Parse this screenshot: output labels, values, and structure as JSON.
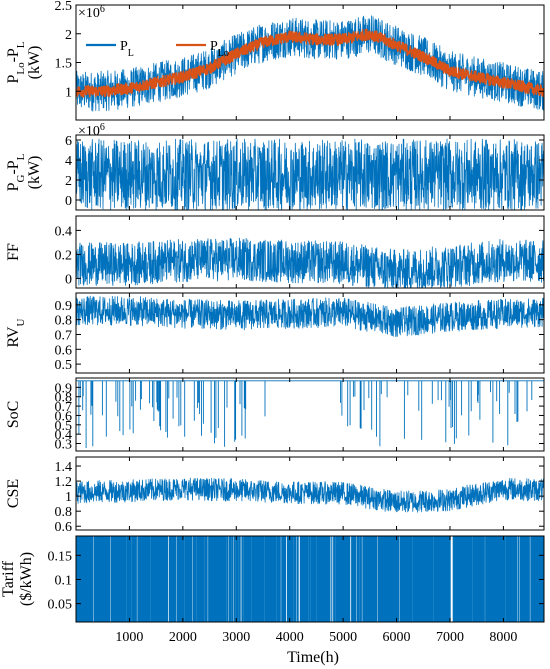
{
  "figure": {
    "xlabel": "Time(h)",
    "x_ticks": [
      1000,
      2000,
      3000,
      4000,
      5000,
      6000,
      7000,
      8000
    ],
    "x_range": [
      0,
      8760
    ],
    "colors": {
      "primary": "#0072BD",
      "secondary": "#D95319",
      "axis": "#000000"
    }
  },
  "chart_data": [
    {
      "type": "line",
      "ylabel_parts": [
        "P",
        "Lo",
        "-P",
        "L",
        " (kW)"
      ],
      "exponent": "×10^6",
      "ylim": [
        500000.0,
        2500000.0
      ],
      "y_ticks": [
        1000000.0,
        1500000.0,
        2000000.0,
        2500000.0
      ],
      "y_tick_labels": [
        "1",
        "1.5",
        "2",
        "2.5"
      ],
      "legend": {
        "placement": "top-left",
        "entries": [
          {
            "name": "P",
            "sub": "L"
          },
          {
            "name": "P",
            "sub": "Lo"
          }
        ]
      },
      "series": [
        {
          "name": "P_L",
          "color": "#0072BD",
          "x": [
            0,
            500,
            1000,
            1500,
            2000,
            2500,
            3000,
            3500,
            4000,
            4500,
            5000,
            5500,
            6000,
            6500,
            7000,
            7500,
            8000,
            8500,
            8760
          ],
          "values": [
            1000000.0,
            1000000.0,
            1050000.0,
            1150000.0,
            1250000.0,
            1400000.0,
            1650000.0,
            1850000.0,
            1950000.0,
            1900000.0,
            1900000.0,
            2000000.0,
            1800000.0,
            1600000.0,
            1350000.0,
            1250000.0,
            1150000.0,
            1050000.0,
            1000000.0
          ],
          "spread": 350000.0
        },
        {
          "name": "P_Lo",
          "color": "#D95319",
          "x": [
            0,
            500,
            1000,
            1500,
            2000,
            2500,
            3000,
            3500,
            4000,
            4500,
            5000,
            5500,
            6000,
            6500,
            7000,
            7500,
            8000,
            8500,
            8760
          ],
          "values": [
            1000000.0,
            1000000.0,
            1050000.0,
            1150000.0,
            1250000.0,
            1400000.0,
            1650000.0,
            1850000.0,
            1950000.0,
            1900000.0,
            1900000.0,
            2000000.0,
            1800000.0,
            1600000.0,
            1350000.0,
            1250000.0,
            1150000.0,
            1050000.0,
            1000000.0
          ],
          "spread": 100000.0
        }
      ]
    },
    {
      "type": "line",
      "ylabel_parts": [
        "P",
        "G",
        "-P",
        "L",
        " (kW)"
      ],
      "exponent": "×10^6",
      "ylim": [
        -1000000.0,
        6500000.0
      ],
      "y_ticks": [
        0,
        2000000.0,
        4000000.0,
        6000000.0
      ],
      "y_tick_labels": [
        "0",
        "2",
        "4",
        "6"
      ],
      "series": [
        {
          "color": "#0072BD",
          "x": [
            0,
            8760
          ],
          "values": [
            2500000.0,
            2500000.0
          ],
          "spread": 3600000.0
        }
      ]
    },
    {
      "type": "line",
      "ylabel_parts": [
        "FF"
      ],
      "ylim": [
        -0.08,
        0.52
      ],
      "y_ticks": [
        0,
        0.2,
        0.4
      ],
      "y_tick_labels": [
        "0",
        "0.2",
        "0.4"
      ],
      "series": [
        {
          "color": "#0072BD",
          "x": [
            0,
            1000,
            2000,
            3000,
            4000,
            5000,
            6000,
            7000,
            8000,
            8760
          ],
          "values": [
            0.12,
            0.12,
            0.15,
            0.16,
            0.14,
            0.13,
            0.06,
            0.1,
            0.15,
            0.14
          ],
          "spread": 0.18
        }
      ]
    },
    {
      "type": "line",
      "ylabel_parts": [
        "RV",
        "U"
      ],
      "ylim": [
        0.44,
        0.98
      ],
      "y_ticks": [
        0.5,
        0.6,
        0.7,
        0.8,
        0.9
      ],
      "y_tick_labels": [
        "0.5",
        "0.6",
        "0.7",
        "0.8",
        "0.9"
      ],
      "series": [
        {
          "color": "#0072BD",
          "x": [
            0,
            1000,
            2000,
            3000,
            4000,
            5000,
            6000,
            7000,
            8000,
            8760
          ],
          "values": [
            0.86,
            0.86,
            0.84,
            0.83,
            0.84,
            0.85,
            0.78,
            0.82,
            0.84,
            0.85
          ],
          "spread": 0.1
        }
      ]
    },
    {
      "type": "line",
      "ylabel_parts": [
        "SoC"
      ],
      "ylim": [
        0.22,
        1.0
      ],
      "y_ticks": [
        0.3,
        0.4,
        0.5,
        0.6,
        0.7,
        0.8,
        0.9
      ],
      "y_tick_labels": [
        "0.3",
        "0.4",
        "0.5",
        "0.6",
        "0.7",
        "0.8",
        "0.9"
      ],
      "series": [
        {
          "color": "#0072BD",
          "x": [
            0,
            8760
          ],
          "values": [
            0.97,
            0.97
          ],
          "spread": 0
        }
      ]
    },
    {
      "type": "line",
      "ylabel_parts": [
        "CSE"
      ],
      "ylim": [
        0.55,
        1.52
      ],
      "y_ticks": [
        0.6,
        0.8,
        1.0,
        1.2,
        1.4
      ],
      "y_tick_labels": [
        "0.6",
        "0.8",
        "1",
        "1.2",
        "1.4"
      ],
      "series": [
        {
          "color": "#0072BD",
          "x": [
            0,
            1000,
            2000,
            3000,
            4000,
            5000,
            6000,
            7000,
            8000,
            8760
          ],
          "values": [
            1.05,
            1.07,
            1.1,
            1.08,
            1.05,
            1.04,
            0.92,
            0.95,
            1.1,
            1.08
          ],
          "spread": 0.15
        }
      ]
    },
    {
      "type": "line",
      "ylabel_parts": [
        "Tariff",
        "($/kWh)"
      ],
      "ylim": [
        0.012,
        0.19
      ],
      "y_ticks": [
        0.05,
        0.1,
        0.15
      ],
      "y_tick_labels": [
        "0.05",
        "0.1",
        "0.15"
      ],
      "series": [
        {
          "color": "#0072BD",
          "x": [
            0,
            8760
          ],
          "values": [
            0.19,
            0.012
          ],
          "spread": 0
        }
      ]
    }
  ]
}
